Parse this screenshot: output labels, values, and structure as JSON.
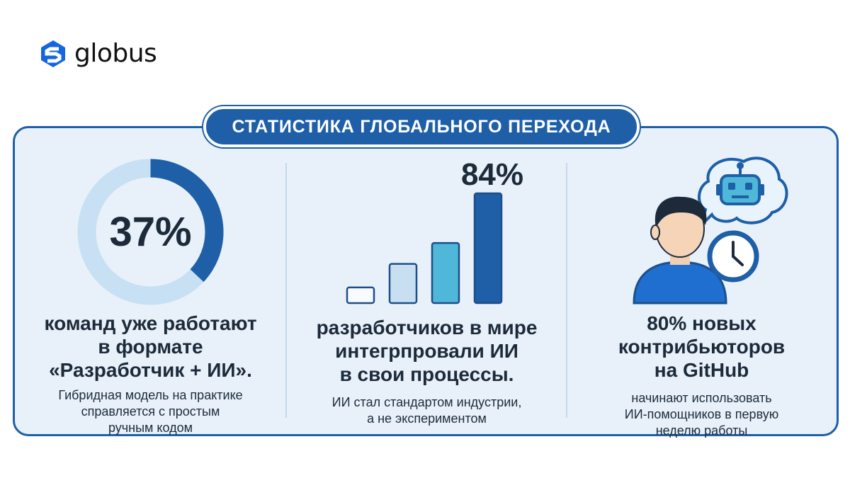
{
  "brand": {
    "name": "globus",
    "color": "#1e5fa8"
  },
  "banner": {
    "title": "СТАТИСТИКА ГЛОБАЛЬНОГО ПЕРЕХОДА"
  },
  "stats": [
    {
      "value": "37%",
      "percent": 37,
      "headline": [
        "команд уже работают",
        "в формате",
        "«Разработчик + ИИ»."
      ],
      "subtext": [
        "Гибридная модель на практике",
        "справляется с простым",
        "ручным кодом"
      ]
    },
    {
      "value": "84%",
      "bars": [
        12,
        30,
        46,
        84
      ],
      "bar_colors": [
        "#f7fbfd",
        "#c7dff0",
        "#4fb7d8",
        "#1e5fa8"
      ],
      "headline": [
        "разработчиков в мире",
        "интегрпровали ИИ",
        "в свои процессы."
      ],
      "subtext": [
        "ИИ стал стандартом индустрии,",
        "а не экспериментом"
      ]
    },
    {
      "headline": [
        "80% новых",
        "контрибьюторов",
        "на GitHub"
      ],
      "subtext": [
        "начинают использовать",
        "ИИ-помощников в первую",
        "неделю работы"
      ],
      "icons": [
        "person-icon",
        "robot-icon",
        "clock-icon",
        "speech-bubble-icon"
      ]
    }
  ],
  "colors": {
    "dark_blue": "#1e5fa8",
    "light_blue": "#c7e0f3",
    "panel_bg": "#e8f1f9",
    "text": "#1c2a3a"
  }
}
